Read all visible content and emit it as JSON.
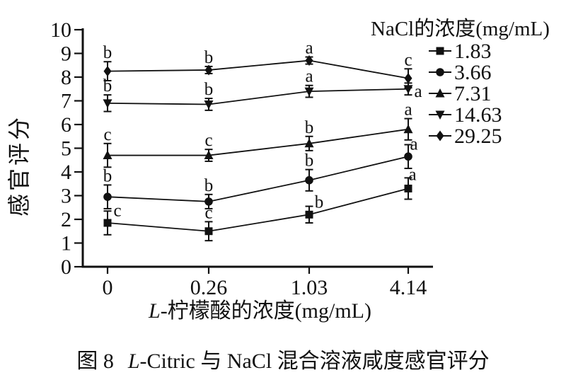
{
  "figure": {
    "caption": {
      "prefix": "图 8",
      "italic": "L",
      "rest": "-Citric 与 NaCl 混合溶液咸度感官评分"
    }
  },
  "chart_data": {
    "type": "line",
    "title": "",
    "xlabel": {
      "italic": "L",
      "rest": "-柠檬酸的浓度(mg/mL)"
    },
    "ylabel": "感官评分",
    "categories": [
      "0",
      "0.26",
      "1.03",
      "4.14"
    ],
    "ylim": [
      0,
      10
    ],
    "yticks": [
      0,
      1,
      2,
      3,
      4,
      5,
      6,
      7,
      8,
      9,
      10
    ],
    "grid": false,
    "legend": {
      "title": "NaCl的浓度(mg/mL)",
      "position": "top-right"
    },
    "ink_color": "#111111",
    "background_color": "#ffffff",
    "series": [
      {
        "name": "1.83",
        "marker": "square",
        "values": [
          1.85,
          1.5,
          2.2,
          3.3
        ],
        "errors": [
          0.5,
          0.4,
          0.35,
          0.45
        ],
        "letters": [
          "c",
          "c",
          "b",
          "a"
        ]
      },
      {
        "name": "3.66",
        "marker": "circle",
        "values": [
          2.95,
          2.75,
          3.65,
          4.65
        ],
        "errors": [
          0.5,
          0.3,
          0.45,
          0.5
        ],
        "letters": [
          "b",
          "b",
          "b",
          "a"
        ]
      },
      {
        "name": "7.31",
        "marker": "triangle-up",
        "values": [
          4.7,
          4.7,
          5.2,
          5.8
        ],
        "errors": [
          0.5,
          0.25,
          0.3,
          0.45
        ],
        "letters": [
          "c",
          "c",
          "b",
          "a"
        ]
      },
      {
        "name": "14.63",
        "marker": "triangle-down",
        "values": [
          6.9,
          6.85,
          7.4,
          7.5
        ],
        "errors": [
          0.35,
          0.25,
          0.25,
          0.25
        ],
        "letters": [
          "b",
          "b",
          "a",
          "a"
        ]
      },
      {
        "name": "29.25",
        "marker": "diamond",
        "values": [
          8.25,
          8.3,
          8.7,
          7.95
        ],
        "errors": [
          0.4,
          0.15,
          0.15,
          0.4
        ],
        "letters": [
          "b",
          "b",
          "a",
          "c"
        ]
      }
    ]
  }
}
